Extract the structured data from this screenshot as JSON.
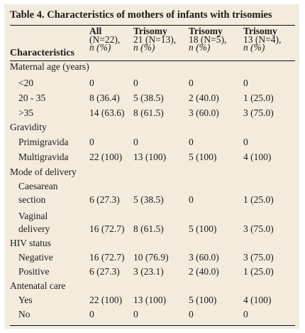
{
  "table": {
    "title": "Table 4. Characteristics of mothers of infants with trisomies",
    "row_header": "Characteristics",
    "columns": [
      {
        "line1": "All",
        "line2": "(N=22),",
        "line3": "n (%)"
      },
      {
        "line1": "Trisomy",
        "line2": "21 (N=13),",
        "line3": "n (%)"
      },
      {
        "line1": "Trisomy",
        "line2": "18 (N=5),",
        "line3": "n (%)"
      },
      {
        "line1": "Trisomy",
        "line2": "13 (N=4),",
        "line3": "n (%)"
      }
    ],
    "sections": {
      "maternal_age": "Maternal age (years)",
      "gravidity": "Gravidity",
      "mode_of_delivery": "Mode of delivery",
      "hiv_status": "HIV status",
      "antenatal_care": "Antenatal care"
    },
    "rows": {
      "age_lt20": {
        "label": "<20",
        "values": [
          "0",
          "0",
          "0",
          "0"
        ]
      },
      "age_20_35": {
        "label": "20 - 35",
        "values": [
          "8 (36.4)",
          "5 (38.5)",
          "2 (40.0)",
          "1 (25.0)"
        ]
      },
      "age_gt35": {
        "label": ">35",
        "values": [
          "14 (63.6)",
          "8 (61.5)",
          "3 (60.0)",
          "3 (75.0)"
        ]
      },
      "primigravida": {
        "label": "Primigravida",
        "values": [
          "0",
          "0",
          "0",
          "0"
        ]
      },
      "multigravida": {
        "label": "Multigravida",
        "values": [
          "22 (100)",
          "13 (100)",
          "5 (100)",
          "4 (100)"
        ]
      },
      "caesarean": {
        "label_line1": "Caesarean",
        "label_line2": "section",
        "values": [
          "6 (27.3)",
          "5 (38.5)",
          "0",
          "1 (25.0)"
        ]
      },
      "vaginal": {
        "label_line1": "Vaginal",
        "label_line2": "delivery",
        "values": [
          "16 (72.7)",
          "8 (61.5)",
          "5 (100)",
          "3 (75.0)"
        ]
      },
      "hiv_negative": {
        "label": "Negative",
        "values": [
          "16 (72.7)",
          "10 (76.9)",
          "3 (60.0)",
          "3 (75.0)"
        ]
      },
      "hiv_positive": {
        "label": "Positive",
        "values": [
          "6 (27.3)",
          "3 (23.1)",
          "2 (40.0)",
          "1 (25.0)"
        ]
      },
      "anc_yes": {
        "label": "Yes",
        "values": [
          "22 (100)",
          "13 (100)",
          "5 (100)",
          "4 (100)"
        ]
      },
      "anc_no": {
        "label": "No",
        "values": [
          "0",
          "0",
          "0",
          "0"
        ]
      }
    }
  }
}
